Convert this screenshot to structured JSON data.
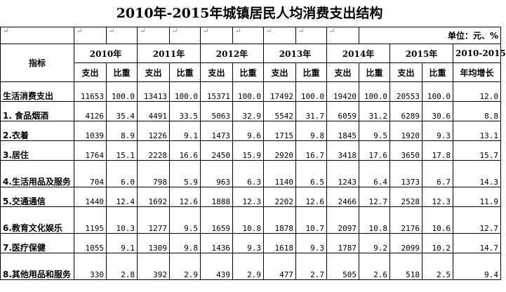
{
  "title": "2010年-2015年城镇居民人均消费支出结构",
  "unit_label": "单位：元、%",
  "para_mark": "↵",
  "header": {
    "indicator": "指标",
    "years": [
      "2010年",
      "2011年",
      "2012年",
      "2013年",
      "2014年",
      "2015年"
    ],
    "growth_line1": "2010-2015",
    "growth_line2": "年均增长",
    "spend": "支出",
    "share": "比重"
  },
  "rows": [
    {
      "label": "生活消费支出",
      "values": [
        "11653",
        "100.0",
        "13413",
        "100.0",
        "15371",
        "100.0",
        "17492",
        "100.0",
        "19420",
        "100.0",
        "20553",
        "100.0",
        "12.0"
      ]
    },
    {
      "label": "1. 食品烟酒",
      "values": [
        "4126",
        "35.4",
        "4491",
        "33.5",
        "5063",
        "32.9",
        "5542",
        "31.7",
        "6059",
        "31.2",
        "6289",
        "30.6",
        "8.8"
      ]
    },
    {
      "label": "2.衣着",
      "values": [
        "1039",
        "8.9",
        "1226",
        "9.1",
        "1473",
        "9.6",
        "1715",
        "9.8",
        "1845",
        "9.5",
        "1920",
        "9.3",
        "13.1"
      ]
    },
    {
      "label": "3.居住",
      "values": [
        "1764",
        "15.1",
        "2228",
        "16.6",
        "2450",
        "15.9",
        "2920",
        "16.7",
        "3418",
        "17.6",
        "3650",
        "17.8",
        "15.7"
      ]
    },
    {
      "label": "4.生活用品及服务",
      "values": [
        "704",
        "6.0",
        "798",
        "5.9",
        "963",
        "6.3",
        "1140",
        "6.5",
        "1243",
        "6.4",
        "1373",
        "6.7",
        "14.3"
      ]
    },
    {
      "label": "5.交通通信",
      "values": [
        "1440",
        "12.4",
        "1692",
        "12.6",
        "1888",
        "12.3",
        "2202",
        "12.6",
        "2466",
        "12.7",
        "2528",
        "12.3",
        "11.9"
      ]
    },
    {
      "label": "6.教育文化娱乐",
      "values": [
        "1195",
        "10.3",
        "1277",
        "9.5",
        "1659",
        "10.8",
        "1878",
        "10.7",
        "2097",
        "10.8",
        "2176",
        "10.6",
        "12.7"
      ]
    },
    {
      "label": "7.医疗保健",
      "values": [
        "1055",
        "9.1",
        "1309",
        "9.8",
        "1436",
        "9.3",
        "1618",
        "9.3",
        "1787",
        "9.2",
        "2099",
        "10.2",
        "14.7"
      ]
    },
    {
      "label": "8.其他用品和服务",
      "values": [
        "330",
        "2.8",
        "392",
        "2.9",
        "439",
        "2.9",
        "477",
        "2.7",
        "505",
        "2.6",
        "518",
        "2.5",
        "9.4"
      ]
    }
  ]
}
